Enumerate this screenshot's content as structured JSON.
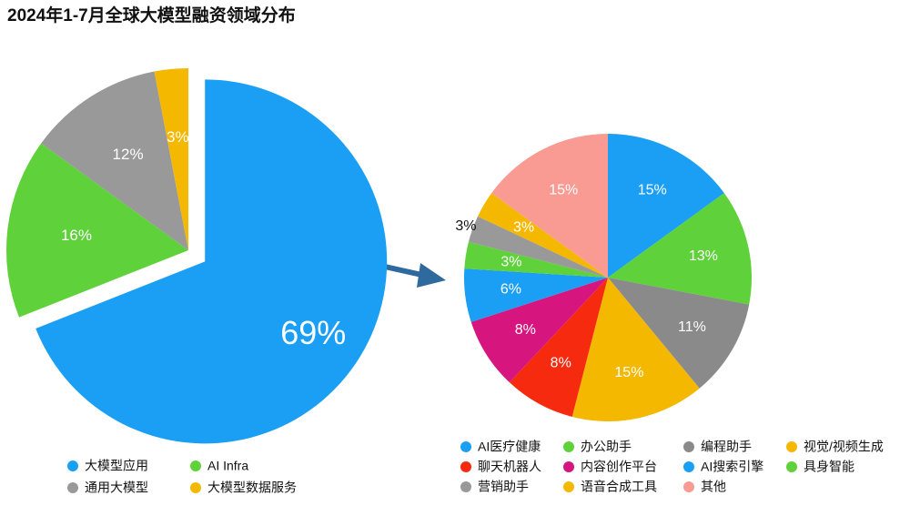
{
  "title": "2024年1-7月全球大模型融资领域分布",
  "chart_data": [
    {
      "type": "pie",
      "categories": [
        "大模型应用",
        "AI Infra",
        "通用大模型",
        "大模型数据服务"
      ],
      "values": [
        69,
        16,
        12,
        3
      ],
      "value_labels": [
        "69%",
        "16%",
        "12%",
        "3%"
      ],
      "colors": [
        "#1a9ff5",
        "#5fd13a",
        "#999999",
        "#f5b800"
      ]
    },
    {
      "type": "pie",
      "categories": [
        "AI医疗健康",
        "办公助手",
        "编程助手",
        "视觉/视频生成",
        "聊天机器人",
        "内容创作平台",
        "AI搜索引擎",
        "具身智能",
        "营销助手",
        "语音合成工具",
        "其他"
      ],
      "values": [
        15,
        13,
        11,
        15,
        8,
        8,
        6,
        3,
        3,
        3,
        15
      ],
      "value_labels": [
        "15%",
        "13%",
        "11%",
        "15%",
        "8%",
        "8%",
        "6%",
        "3%",
        "3%",
        "3%",
        "15%"
      ],
      "colors": [
        "#1a9ff5",
        "#5fd13a",
        "#8a8a8a",
        "#f5b800",
        "#f52a0f",
        "#d6167e",
        "#1a9ff5",
        "#5fd13a",
        "#999999",
        "#f5b800",
        "#f99a93"
      ]
    }
  ]
}
